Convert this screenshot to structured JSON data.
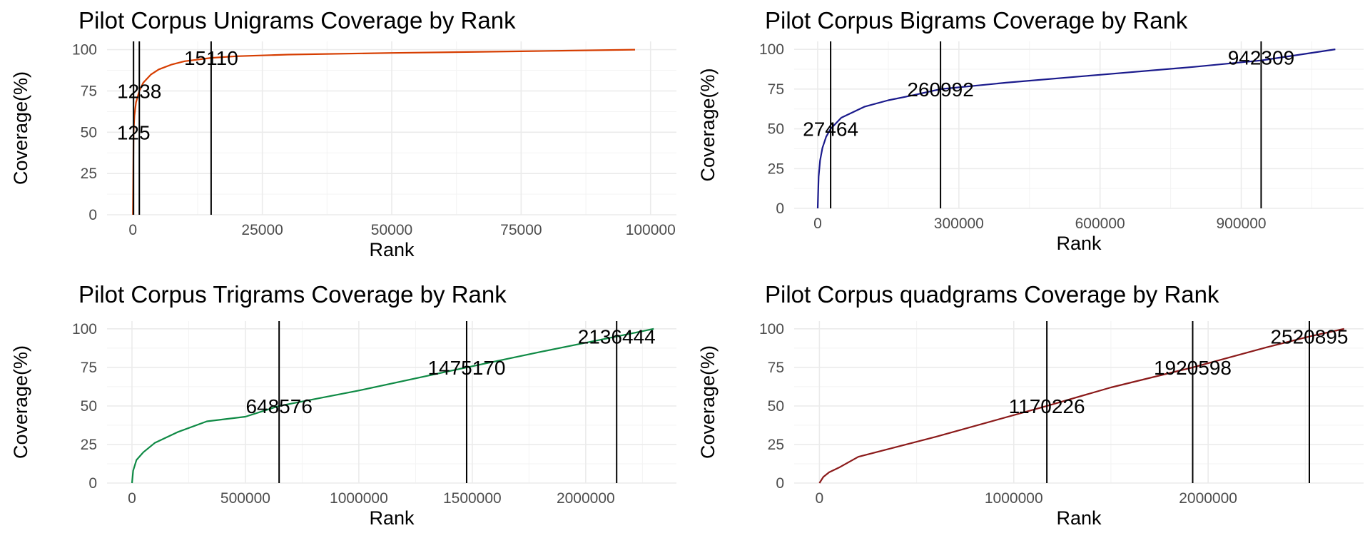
{
  "chart_data": [
    {
      "type": "line",
      "title": "Pilot Corpus Unigrams Coverage by Rank",
      "xlabel": "Rank",
      "ylabel": "Coverage(%)",
      "xlim": [
        -5000,
        105000
      ],
      "ylim": [
        0,
        105
      ],
      "xticks": [
        0,
        25000,
        50000,
        75000,
        100000
      ],
      "xtick_labels": [
        "0",
        "25000",
        "50000",
        "75000",
        "100000"
      ],
      "yticks": [
        0,
        25,
        50,
        75,
        100
      ],
      "ytick_labels": [
        "0",
        "25",
        "50",
        "75",
        "100"
      ],
      "grid": true,
      "color": "#d63d00",
      "x": [
        0,
        125,
        300,
        600,
        1238,
        2000,
        3500,
        5000,
        7500,
        10000,
        15110,
        20000,
        30000,
        50000,
        75000,
        97000
      ],
      "y": [
        0,
        50,
        60,
        68,
        75,
        80,
        85,
        88,
        91,
        93,
        95,
        96,
        97,
        98,
        99,
        100
      ],
      "vlines": [
        {
          "x": 125,
          "label": "125",
          "label_y": 50
        },
        {
          "x": 1238,
          "label": "1238",
          "label_y": 75
        },
        {
          "x": 15110,
          "label": "15110",
          "label_y": 95
        }
      ]
    },
    {
      "type": "line",
      "title": "Pilot Corpus Bigrams Coverage by Rank",
      "xlabel": "Rank",
      "ylabel": "Coverage(%)",
      "xlim": [
        -50000,
        1160000
      ],
      "ylim": [
        0,
        105
      ],
      "xticks": [
        0,
        300000,
        600000,
        900000
      ],
      "xtick_labels": [
        "0",
        "300000",
        "600000",
        "900000"
      ],
      "yticks": [
        0,
        25,
        50,
        75,
        100
      ],
      "ytick_labels": [
        "0",
        "25",
        "50",
        "75",
        "100"
      ],
      "grid": true,
      "color": "#1a1a8c",
      "x": [
        0,
        2000,
        5000,
        10000,
        18000,
        27464,
        50000,
        100000,
        150000,
        200000,
        260992,
        400000,
        600000,
        800000,
        942309,
        1100000
      ],
      "y": [
        0,
        20,
        30,
        38,
        45,
        50,
        57,
        64,
        68,
        71,
        75,
        79,
        84,
        89,
        93,
        100
      ],
      "vlines": [
        {
          "x": 27464,
          "label": "27464",
          "label_y": 50
        },
        {
          "x": 260992,
          "label": "260992",
          "label_y": 75
        },
        {
          "x": 942309,
          "label": "942309",
          "label_y": 95
        }
      ]
    },
    {
      "type": "line",
      "title": "Pilot Corpus Trigrams Coverage by Rank",
      "xlabel": "Rank",
      "ylabel": "Coverage(%)",
      "xlim": [
        -110000,
        2400000
      ],
      "ylim": [
        0,
        105
      ],
      "xticks": [
        0,
        500000,
        1000000,
        1500000,
        2000000
      ],
      "xtick_labels": [
        "0",
        "500000",
        "1000000",
        "1500000",
        "2000000"
      ],
      "yticks": [
        0,
        25,
        50,
        75,
        100
      ],
      "ytick_labels": [
        "0",
        "25",
        "50",
        "75",
        "100"
      ],
      "grid": true,
      "color": "#0f8a45",
      "x": [
        0,
        5000,
        20000,
        50000,
        100000,
        200000,
        330000,
        500000,
        648576,
        1000000,
        1475170,
        1800000,
        2136444,
        2300000
      ],
      "y": [
        0,
        8,
        15,
        20,
        26,
        33,
        40,
        43,
        50,
        60,
        75,
        85,
        95,
        100
      ],
      "vlines": [
        {
          "x": 648576,
          "label": "648576",
          "label_y": 50
        },
        {
          "x": 1475170,
          "label": "1475170",
          "label_y": 75
        },
        {
          "x": 2136444,
          "label": "2136444",
          "label_y": 95
        }
      ]
    },
    {
      "type": "line",
      "title": "Pilot Corpus quadgrams Coverage by Rank",
      "xlabel": "Rank",
      "ylabel": "Coverage(%)",
      "xlim": [
        -130000,
        2800000
      ],
      "ylim": [
        0,
        105
      ],
      "xticks": [
        0,
        1000000,
        2000000
      ],
      "xtick_labels": [
        "0",
        "1000000",
        "2000000"
      ],
      "yticks": [
        0,
        25,
        50,
        75,
        100
      ],
      "ytick_labels": [
        "0",
        "25",
        "50",
        "75",
        "100"
      ],
      "grid": true,
      "color": "#8b1a1a",
      "x": [
        0,
        20000,
        50000,
        100000,
        200000,
        600000,
        1170226,
        1500000,
        1920598,
        2300000,
        2520895,
        2700000
      ],
      "y": [
        0,
        4,
        7,
        10,
        17,
        30,
        50,
        62,
        75,
        88,
        95,
        100
      ],
      "vlines": [
        {
          "x": 1170226,
          "label": "1170226",
          "label_y": 50
        },
        {
          "x": 1920598,
          "label": "1920598",
          "label_y": 75
        },
        {
          "x": 2520895,
          "label": "2520895",
          "label_y": 95
        }
      ]
    }
  ]
}
